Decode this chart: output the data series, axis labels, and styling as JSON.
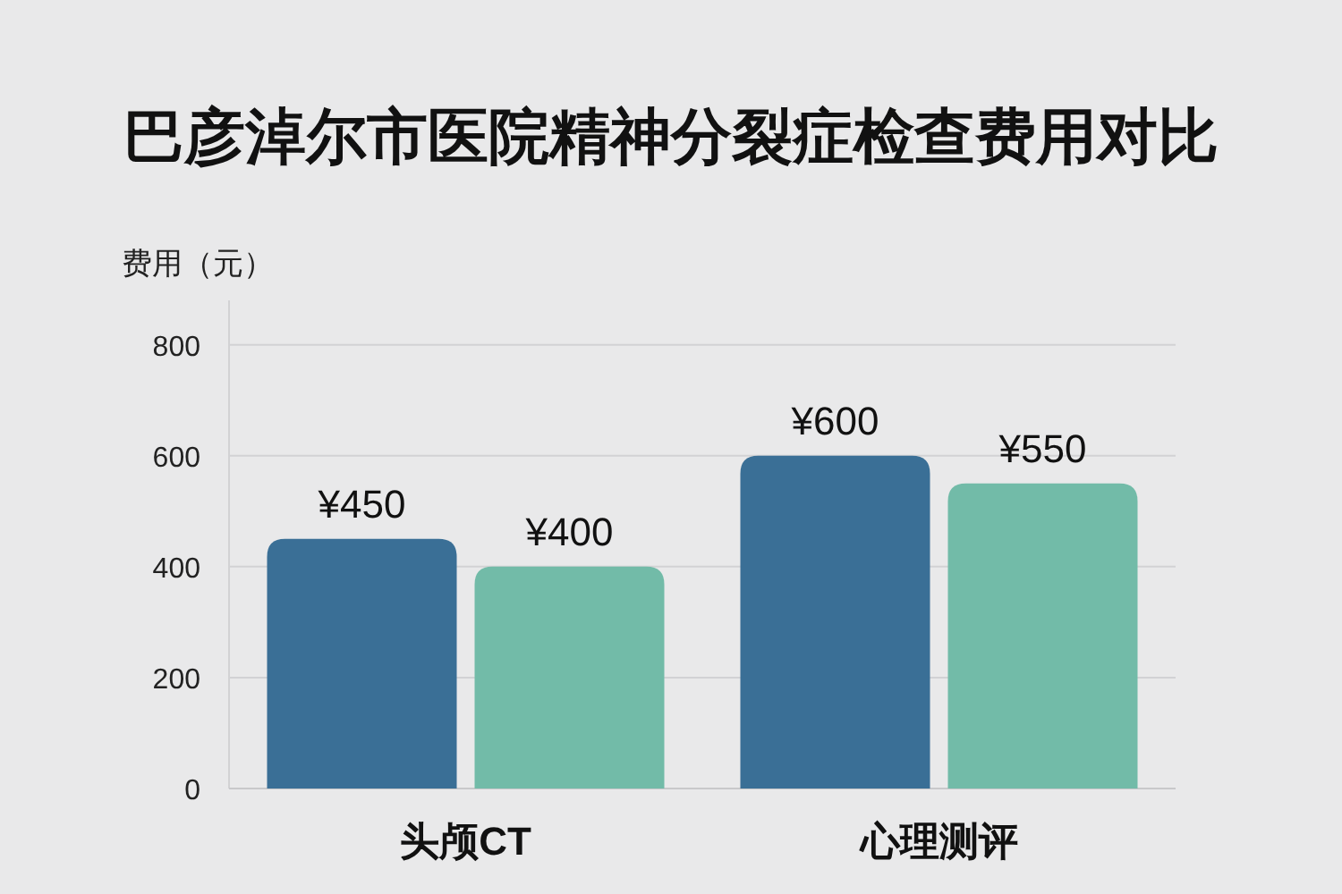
{
  "chart_data": {
    "type": "bar",
    "title": "巴彦淖尔市医院精神分裂症检查费用对比",
    "ylabel": "费用（元）",
    "categories": [
      "头颅CT",
      "心理测评"
    ],
    "series": [
      {
        "color": "#3a6f96",
        "values": [
          450,
          600
        ],
        "value_labels": [
          "¥450",
          "¥600"
        ]
      },
      {
        "color": "#72bba8",
        "values": [
          400,
          550
        ],
        "value_labels": [
          "¥400",
          "¥550"
        ]
      }
    ],
    "ylim": [
      0,
      880
    ],
    "yticks": [
      0,
      200,
      400,
      600,
      800
    ],
    "grid": "y"
  }
}
